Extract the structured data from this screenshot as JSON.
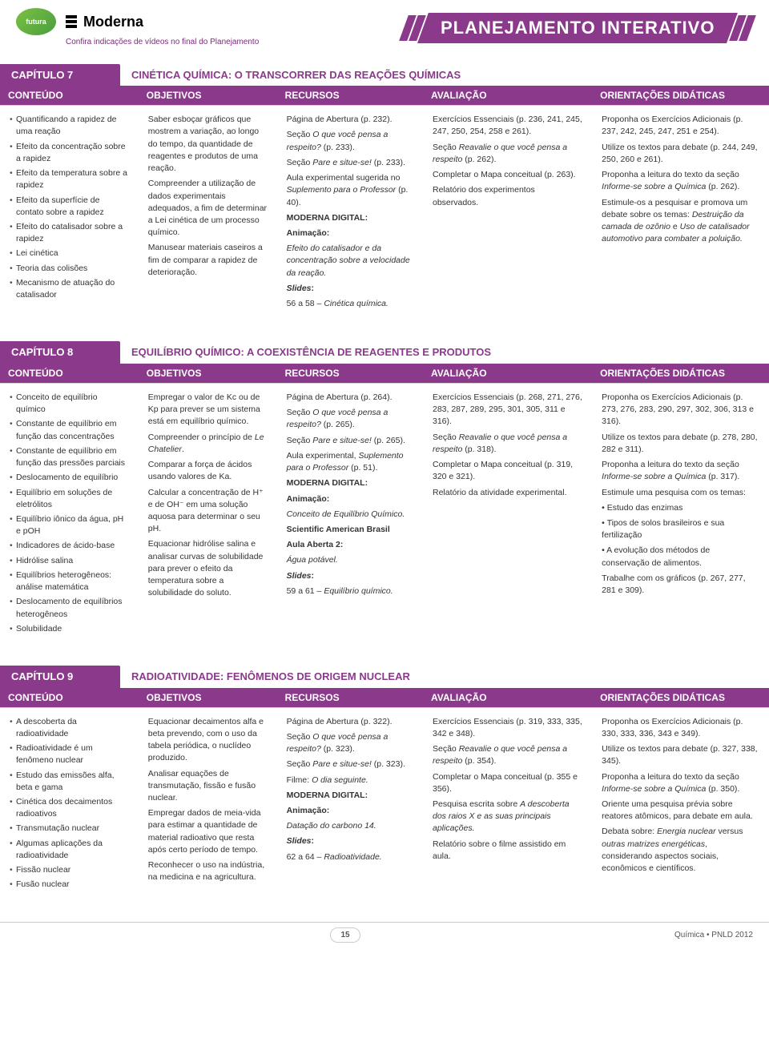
{
  "header": {
    "futura_label": "futura",
    "moderna_label": "Moderna",
    "subtitle": "Confira indicações de vídeos no final do Planejamento",
    "banner": "PLANEJAMENTO INTERATIVO"
  },
  "column_headers": [
    "CONTEÚDO",
    "OBJETIVOS",
    "RECURSOS",
    "AVALIAÇÃO",
    "ORIENTAÇÕES DIDÁTICAS"
  ],
  "chapters": [
    {
      "label": "CAPÍTULO 7",
      "title": "CINÉTICA QUÍMICA: O TRANSCORRER DAS REAÇÕES QUÍMICAS",
      "conteudo": [
        "Quantificando a rapidez de uma reação",
        "Efeito da concentração sobre a rapidez",
        "Efeito da temperatura sobre a rapidez",
        "Efeito da superfície de contato sobre a rapidez",
        "Efeito do catalisador sobre a rapidez",
        "Lei cinética",
        "Teoria das colisões",
        "Mecanismo de atuação do catalisador"
      ],
      "objetivos": [
        "Saber esboçar gráficos que mostrem a variação, ao longo do tempo, da quantidade de reagentes e produtos de uma reação.",
        "Compreender a utilização de dados experimentais adequados, a fim de determinar a Lei cinética de um processo químico.",
        "Manusear materiais caseiros a fim de comparar a rapidez de deterioração."
      ],
      "recursos": "Página de Abertura (p. 232).\nSeção <em>O que você pensa a respeito?</em> (p. 233).\nSeção <em>Pare e situe-se!</em> (p. 233).\nAula experimental sugerida no <em>Suplemento para o Professor</em> (p. 40).\n<strong>MODERNA DIGITAL:</strong>\n<strong>Animação:</strong>\n<em>Efeito do catalisador e da concentração sobre a velocidade da reação.</em>\n<strong><em>Slides</em>:</strong>\n56 a 58 – <em>Cinética química.</em>",
      "avaliacao": "Exercícios Essenciais (p. 236, 241, 245, 247, 250, 254, 258 e 261).\nSeção <em>Reavalie o que você pensa a respeito</em> (p. 262).\nCompletar o Mapa conceitual (p. 263).\nRelatório dos experimentos observados.",
      "orientacoes": "Proponha os Exercícios Adicionais (p. 237, 242, 245, 247, 251 e 254).\nUtilize os textos para debate (p. 244, 249, 250, 260 e 261).\nProponha a leitura do texto da seção <em>Informe-se sobre a Química</em> (p. 262).\nEstimule-os a pesquisar e promova um debate sobre os temas: <em>Destruição da camada de ozônio</em> e <em>Uso de catalisador automotivo para combater a poluição.</em>"
    },
    {
      "label": "CAPÍTULO 8",
      "title": "EQUILÍBRIO QUÍMICO: A COEXISTÊNCIA DE REAGENTES E PRODUTOS",
      "conteudo": [
        "Conceito de equilíbrio químico",
        "Constante de equilíbrio em função das concentrações",
        "Constante de equilíbrio em função das pressões parciais",
        "Deslocamento de equilíbrio",
        "Equilíbrio em soluções de eletrólitos",
        "Equilíbrio iônico da água, pH e pOH",
        "Indicadores de ácido-base",
        "Hidrólise salina",
        "Equilíbrios heterogêneos: análise matemática",
        "Deslocamento de equilíbrios heterogêneos",
        "Solubilidade"
      ],
      "objetivos": [
        "Empregar o valor de Kc ou de Kp para prever se um sistema está em equilíbrio químico.",
        "Compreender o princípio de <em>Le Chatelier</em>.",
        "Comparar a força de ácidos usando valores de Ka.",
        "Calcular a concentração de H⁺ e de OH⁻ em uma solução aquosa para determinar o seu pH.",
        "Equacionar hidrólise salina e analisar curvas de solubilidade para prever o efeito da temperatura sobre a solubilidade do soluto."
      ],
      "recursos": "Página de Abertura (p. 264).\nSeção <em>O que você pensa a respeito?</em> (p. 265).\nSeção <em>Pare e situe-se!</em> (p. 265).\nAula experimental, <em>Suplemento para o Professor</em> (p. 51).\n<strong>MODERNA DIGITAL:</strong>\n<strong>Animação:</strong>\n<em>Conceito de Equilíbrio Químico.</em>\n<strong>Scientific American Brasil</strong>\n<strong>Aula Aberta 2:</strong>\n<em>Água potável.</em>\n<strong><em>Slides</em>:</strong>\n59 a 61 – <em>Equilíbrio químico.</em>",
      "avaliacao": "Exercícios Essenciais (p. 268, 271, 276, 283, 287, 289, 295, 301, 305, 311 e 316).\nSeção <em>Reavalie o que você pensa a respeito</em> (p. 318).\nCompletar o Mapa conceitual (p. 319, 320 e 321).\nRelatório da atividade experimental.",
      "orientacoes": "Proponha os Exercícios Adicionais (p. 273, 276, 283, 290, 297, 302, 306, 313 e 316).\nUtilize os textos para debate (p. 278, 280, 282 e 311).\nProponha a leitura do texto da seção <em>Informe-se sobre a Química</em> (p. 317).\nEstimule uma pesquisa com os temas:\n• Estudo das enzimas\n• Tipos de solos brasileiros e sua fertilização\n• A evolução dos métodos de conservação de alimentos.\nTrabalhe com os gráficos (p. 267, 277, 281 e 309)."
    },
    {
      "label": "CAPÍTULO 9",
      "title": "RADIOATIVIDADE: FENÔMENOS DE ORIGEM NUCLEAR",
      "conteudo": [
        "A descoberta da radioatividade",
        "Radioatividade é um fenômeno nuclear",
        "Estudo das emissões alfa, beta e gama",
        "Cinética dos decaimentos radioativos",
        "Transmutação nuclear",
        "Algumas aplicações da radioatividade",
        "Fissão nuclear",
        "Fusão nuclear"
      ],
      "objetivos": [
        "Equacionar decaimentos alfa e beta prevendo, com o uso da tabela periódica, o nuclídeo produzido.",
        "Analisar equações de transmutação, fissão e fusão nuclear.",
        "Empregar dados de meia-vida para estimar a quantidade de material radioativo que resta após certo período de tempo.",
        "Reconhecer o uso na indústria, na medicina e na agricultura."
      ],
      "recursos": "Página de Abertura (p. 322).\nSeção <em>O que você pensa a respeito?</em> (p. 323).\nSeção <em>Pare e situe-se!</em> (p. 323).\nFilme: <em>O dia seguinte.</em>\n<strong>MODERNA DIGITAL:</strong>\n<strong>Animação:</strong>\n<em>Datação do carbono 14.</em>\n<strong><em>Slides</em>:</strong>\n62 a 64 – <em>Radioatividade.</em>",
      "avaliacao": "Exercícios Essenciais (p. 319, 333, 335, 342 e 348).\nSeção <em>Reavalie o que você pensa a respeito</em> (p. 354).\nCompletar o Mapa conceitual (p. 355 e 356).\nPesquisa escrita sobre <em>A descoberta dos raios X e as suas principais aplicações.</em>\nRelatório sobre o filme assistido em aula.",
      "orientacoes": "Proponha os Exercícios Adicionais (p. 330, 333, 336, 343 e 349).\nUtilize os textos para debate (p. 327, 338, 345).\nProponha a leitura do texto da seção <em>Informe-se sobre a Química</em> (p. 350).\nOriente uma pesquisa prévia sobre reatores atômicos, para debate em aula.\nDebata sobre: <em>Energia nuclear</em> versus <em>outras matrizes energéticas</em>, considerando aspectos sociais, econômicos e científicos."
    }
  ],
  "footer": {
    "page_number": "15",
    "right_text": "Química • PNLD 2012"
  },
  "colors": {
    "brand_purple": "#8b3a8b",
    "text": "#333333",
    "border": "#d0d0d0"
  }
}
